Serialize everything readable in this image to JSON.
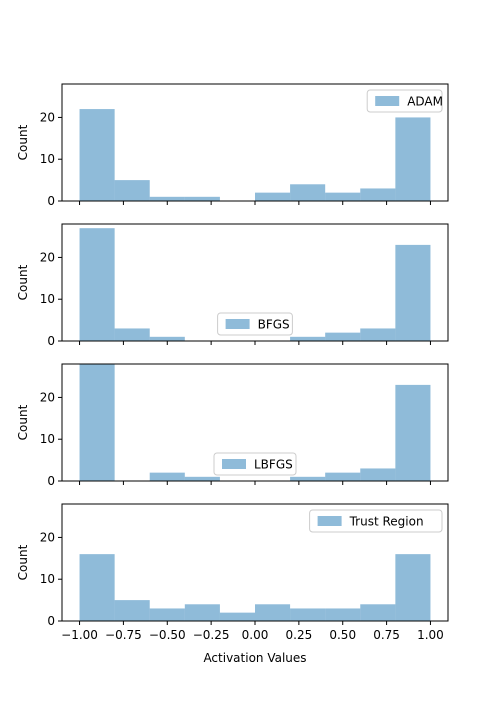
{
  "chart_data": [
    {
      "type": "bar",
      "bin_edges": [
        -1.0,
        -0.8,
        -0.6,
        -0.4,
        -0.2,
        0.0,
        0.2,
        0.4,
        0.6,
        0.8,
        1.0
      ],
      "counts": [
        22,
        5,
        1,
        1,
        0,
        2,
        4,
        2,
        3,
        20
      ],
      "legend": "ADAM",
      "legend_position": "upper right",
      "ylabel": "Count",
      "ylim": [
        0,
        28
      ],
      "yticks": [
        "0",
        "10",
        "20"
      ]
    },
    {
      "type": "bar",
      "bin_edges": [
        -1.0,
        -0.8,
        -0.6,
        -0.4,
        -0.2,
        0.0,
        0.2,
        0.4,
        0.6,
        0.8,
        1.0
      ],
      "counts": [
        27,
        3,
        1,
        0,
        0,
        0,
        1,
        2,
        3,
        23
      ],
      "legend": "BFGS",
      "legend_position": "lower center",
      "ylabel": "Count",
      "ylim": [
        0,
        28
      ],
      "yticks": [
        "0",
        "10",
        "20"
      ]
    },
    {
      "type": "bar",
      "bin_edges": [
        -1.0,
        -0.8,
        -0.6,
        -0.4,
        -0.2,
        0.0,
        0.2,
        0.4,
        0.6,
        0.8,
        1.0
      ],
      "counts": [
        28,
        0,
        2,
        1,
        0,
        0,
        1,
        2,
        3,
        23
      ],
      "legend": "LBFGS",
      "legend_position": "lower center",
      "ylabel": "Count",
      "ylim": [
        0,
        28
      ],
      "yticks": [
        "0",
        "10",
        "20"
      ]
    },
    {
      "type": "bar",
      "bin_edges": [
        -1.0,
        -0.8,
        -0.6,
        -0.4,
        -0.2,
        0.0,
        0.2,
        0.4,
        0.6,
        0.8,
        1.0
      ],
      "counts": [
        16,
        5,
        3,
        4,
        2,
        4,
        3,
        3,
        4,
        16
      ],
      "legend": "Trust Region",
      "legend_position": "upper right",
      "ylabel": "Count",
      "ylim": [
        0,
        28
      ],
      "yticks": [
        "0",
        "10",
        "20"
      ]
    }
  ],
  "xaxis": {
    "label": "Activation Values",
    "xlim": [
      -1.1,
      1.1
    ],
    "ticks": [
      -1.0,
      -0.75,
      -0.5,
      -0.25,
      0.0,
      0.25,
      0.5,
      0.75,
      1.0
    ],
    "tick_labels": [
      "−1.00",
      "−0.75",
      "−0.50",
      "−0.25",
      "0.00",
      "0.25",
      "0.50",
      "0.75",
      "1.00"
    ]
  },
  "style": {
    "bar_color": "#1f77b4",
    "bar_opacity": 0.5,
    "axis_color": "#000000"
  }
}
